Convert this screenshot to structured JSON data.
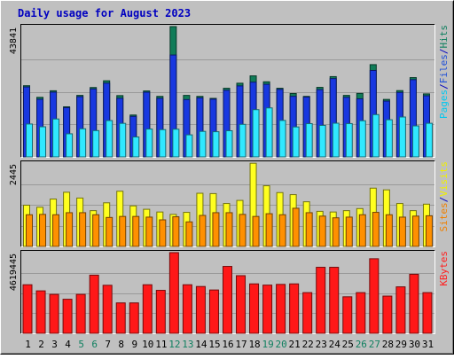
{
  "chart_data": {
    "type": "bar",
    "title": "Daily usage for August 2023",
    "categories": [
      "1",
      "2",
      "3",
      "4",
      "5",
      "6",
      "7",
      "8",
      "9",
      "10",
      "11",
      "12",
      "13",
      "14",
      "15",
      "16",
      "17",
      "18",
      "19",
      "20",
      "21",
      "22",
      "23",
      "24",
      "25",
      "26",
      "27",
      "28",
      "29",
      "30",
      "31"
    ],
    "weekend_days": [
      5,
      6,
      12,
      13,
      19,
      20,
      26,
      27
    ],
    "panels": [
      {
        "id": "top",
        "max_label": "43841",
        "ylim": [
          0,
          43841
        ],
        "right_labels": [
          {
            "text": "Pages",
            "color": "#00c8f0"
          },
          {
            "text": "/",
            "color": "#0000c0"
          },
          {
            "text": "Files",
            "color": "#2050d8"
          },
          {
            "text": "/",
            "color": "#0000c0"
          },
          {
            "text": "Hits",
            "color": "#108060"
          }
        ],
        "series": [
          {
            "name": "Hits",
            "color": "#107c58",
            "values": [
              23950,
              20040,
              22250,
              16850,
              20690,
              23340,
              25610,
              20620,
              14090,
              22190,
              20360,
              43840,
              20690,
              20360,
              19690,
              23090,
              24790,
              27260,
              25270,
              23090,
              21320,
              20360,
              23390,
              27010,
              20690,
              21360,
              31040,
              19340,
              22300,
              26680,
              21200
            ]
          },
          {
            "name": "Files",
            "color": "#1838e0",
            "values": [
              23520,
              19380,
              21780,
              16560,
              20260,
              22860,
              24810,
              19720,
              13620,
              21760,
              19700,
              34280,
              19280,
              19860,
              19420,
              22420,
              23890,
              25150,
              24420,
              22720,
              20380,
              20120,
              22630,
              26350,
              20040,
              19540,
              29080,
              18770,
              21680,
              25980,
              20560
            ]
          },
          {
            "name": "Pages",
            "color": "#30e8ff",
            "values": [
              11060,
              10130,
              12760,
              7770,
              9470,
              8850,
              12230,
              11280,
              6700,
              9370,
              9180,
              9330,
              7420,
              8590,
              8470,
              8800,
              10950,
              15890,
              16480,
              12270,
              10080,
              11190,
              10600,
              11330,
              11200,
              12170,
              14230,
              12500,
              13420,
              10430,
              11300
            ]
          }
        ]
      },
      {
        "id": "middle",
        "max_label": "2445",
        "ylim": [
          0,
          2445
        ],
        "right_labels": [
          {
            "text": "Sites",
            "color": "#f08000"
          },
          {
            "text": "/",
            "color": "#0000c0"
          },
          {
            "text": "Visits",
            "color": "#f0f000"
          }
        ],
        "series": [
          {
            "name": "Visits",
            "color": "#ffff20",
            "values": [
              1210,
              1150,
              1390,
              1590,
              1420,
              1050,
              1280,
              1620,
              1190,
              1090,
              1010,
              940,
              1000,
              1560,
              1550,
              1260,
              1350,
              2440,
              1780,
              1580,
              1520,
              1310,
              1030,
              1010,
              1050,
              1110,
              1710,
              1660,
              1260,
              1050,
              1240
            ]
          },
          {
            "name": "Sites",
            "color": "#ff9000",
            "values": [
              930,
              940,
              930,
              990,
              990,
              930,
              850,
              880,
              880,
              860,
              780,
              870,
              720,
              910,
              990,
              990,
              940,
              880,
              960,
              930,
              1120,
              990,
              890,
              840,
              860,
              930,
              1000,
              930,
              860,
              890,
              900
            ]
          }
        ]
      },
      {
        "id": "bottom",
        "max_label": "4619445",
        "ylim": [
          0,
          4619445
        ],
        "right_labels": [
          {
            "text": "KBytes",
            "color": "#ff2020"
          }
        ],
        "series": [
          {
            "name": "KBytes",
            "color": "#ff1818",
            "values": [
              2780000,
              2430000,
              2230000,
              1950000,
              2230000,
              3330000,
              2750000,
              1740000,
              1740000,
              2780000,
              2460000,
              4620000,
              2780000,
              2680000,
              2480000,
              3830000,
              3300000,
              2830000,
              2760000,
              2800000,
              2830000,
              2330000,
              3780000,
              3780000,
              2090000,
              2330000,
              4270000,
              2130000,
              2660000,
              3380000,
              2330000
            ]
          }
        ]
      }
    ]
  }
}
